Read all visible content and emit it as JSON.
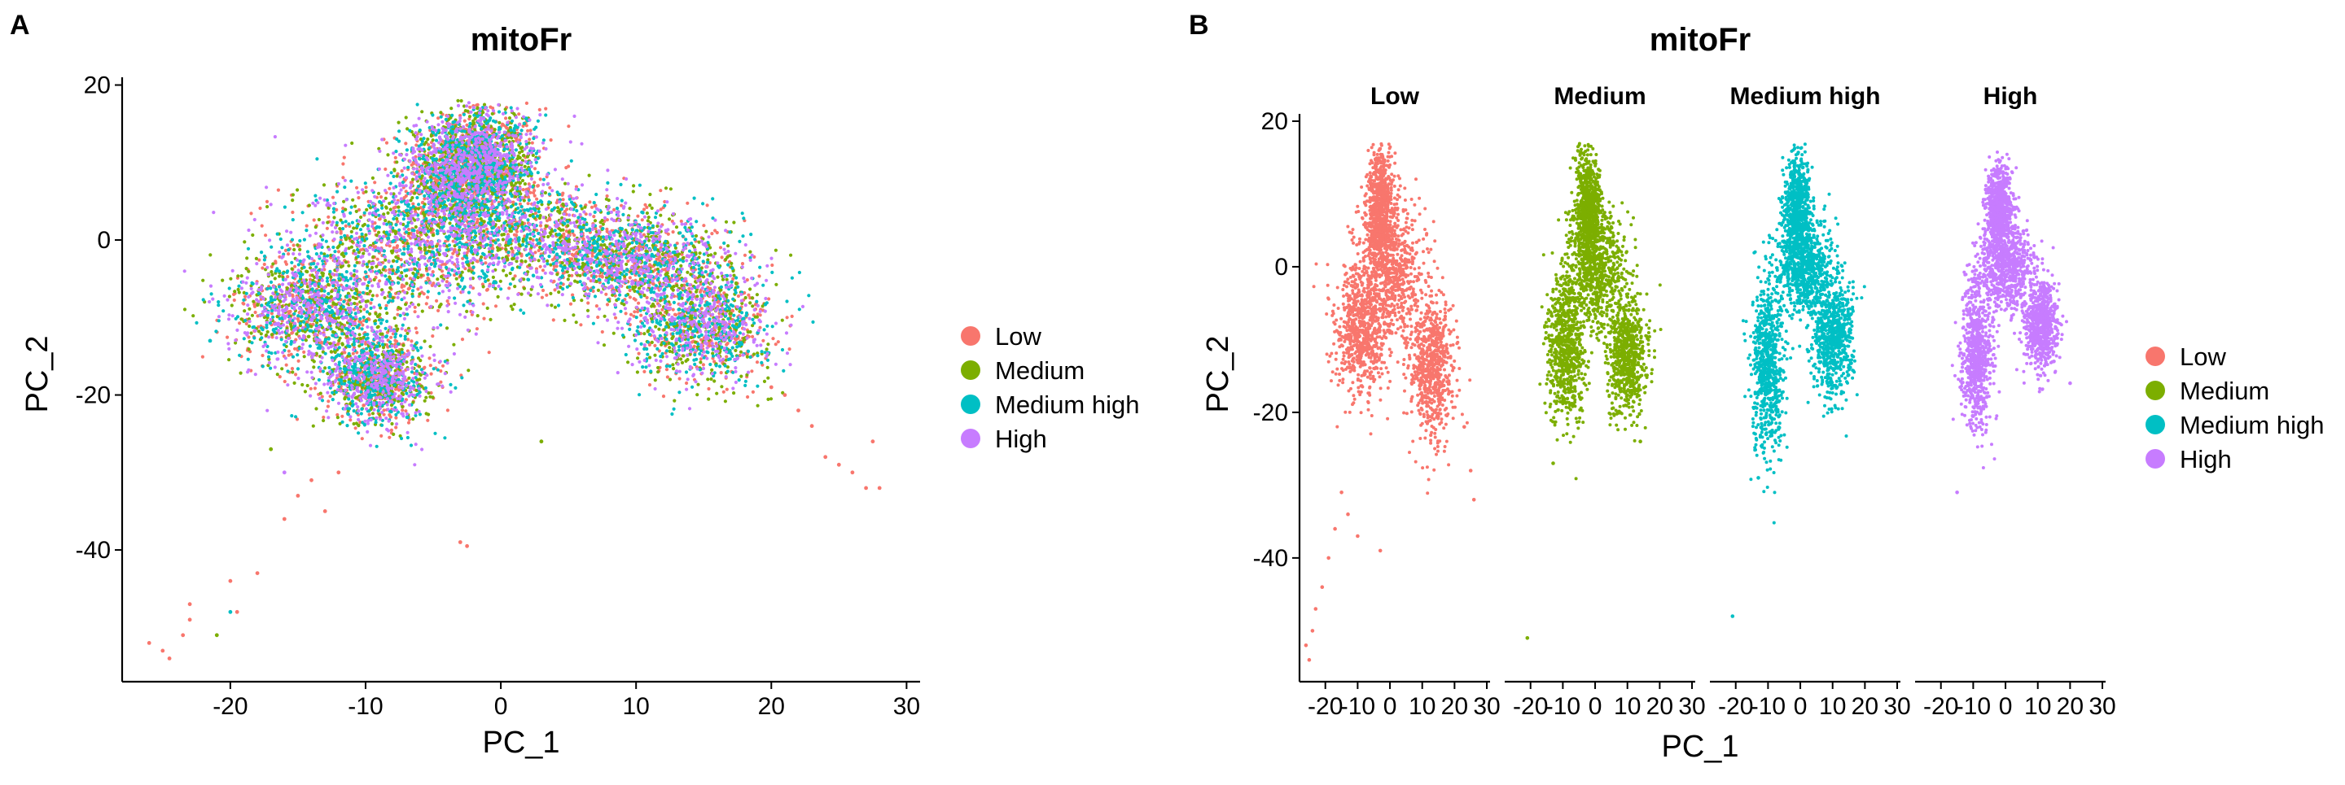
{
  "panels": {
    "a_label": "A",
    "b_label": "B"
  },
  "colors": {
    "Low": "#F8766D",
    "Medium": "#7CAE00",
    "Medium high": "#00BFC4",
    "High": "#C77CFF"
  },
  "chart_data": [
    {
      "type": "scatter",
      "title": "mitoFr",
      "xlabel": "PC_1",
      "ylabel": "PC_2",
      "xlim": [
        -28,
        31
      ],
      "ylim": [
        -57,
        21
      ],
      "xticks": [
        -20,
        -10,
        0,
        10,
        20,
        30
      ],
      "yticks": [
        20,
        0,
        -20,
        -40
      ],
      "grid": false,
      "legend": {
        "position": "right",
        "entries": [
          "Low",
          "Medium",
          "Medium high",
          "High"
        ]
      },
      "series": [
        {
          "name": "Low",
          "color": "#F8766D"
        },
        {
          "name": "Medium",
          "color": "#7CAE00"
        },
        {
          "name": "Medium high",
          "color": "#00BFC4"
        },
        {
          "name": "High",
          "color": "#C77CFF"
        }
      ],
      "clusters": [
        {
          "cx": -3.5,
          "cy": 9,
          "sx": 2,
          "sy": 3.5
        },
        {
          "cx": -1,
          "cy": 10,
          "sx": 2,
          "sy": 3.5
        },
        {
          "cx": -7,
          "cy": -1,
          "sx": 4.5,
          "sy": 4.5
        },
        {
          "cx": 2,
          "cy": 1,
          "sx": 5,
          "sy": 3.5
        },
        {
          "cx": 10,
          "cy": -3,
          "sx": 3.5,
          "sy": 3
        },
        {
          "cx": 15,
          "cy": -11,
          "sx": 2.5,
          "sy": 3.5
        },
        {
          "cx": -14,
          "cy": -9,
          "sx": 3,
          "sy": 3.5
        },
        {
          "cx": -9,
          "cy": -18,
          "sx": 2,
          "sy": 3
        }
      ],
      "outliers": [
        {
          "name": "Low",
          "x": -26,
          "y": -52
        },
        {
          "name": "Low",
          "x": -25,
          "y": -53
        },
        {
          "name": "Low",
          "x": -24.5,
          "y": -54
        },
        {
          "name": "Low",
          "x": -23.5,
          "y": -51
        },
        {
          "name": "Low",
          "x": -23,
          "y": -49
        },
        {
          "name": "Low",
          "x": -23,
          "y": -47
        },
        {
          "name": "Low",
          "x": -20,
          "y": -44
        },
        {
          "name": "Low",
          "x": -19.5,
          "y": -48
        },
        {
          "name": "Low",
          "x": -18,
          "y": -43
        },
        {
          "name": "Low",
          "x": -16,
          "y": -36
        },
        {
          "name": "Low",
          "x": -15,
          "y": -33
        },
        {
          "name": "Low",
          "x": -14,
          "y": -31
        },
        {
          "name": "Low",
          "x": -13,
          "y": -35
        },
        {
          "name": "Low",
          "x": -12,
          "y": -30
        },
        {
          "name": "Low",
          "x": -3,
          "y": -39
        },
        {
          "name": "Low",
          "x": -2.5,
          "y": -39.5
        },
        {
          "name": "Low",
          "x": 22,
          "y": -22
        },
        {
          "name": "Low",
          "x": 23,
          "y": -24
        },
        {
          "name": "Low",
          "x": 24,
          "y": -28
        },
        {
          "name": "Low",
          "x": 25,
          "y": -29
        },
        {
          "name": "Low",
          "x": 26,
          "y": -30
        },
        {
          "name": "Low",
          "x": 27,
          "y": -32
        },
        {
          "name": "Low",
          "x": 28,
          "y": -32
        },
        {
          "name": "Low",
          "x": 27.5,
          "y": -26
        },
        {
          "name": "Low",
          "x": 21,
          "y": -20
        },
        {
          "name": "Low",
          "x": 20,
          "y": -19
        },
        {
          "name": "Medium",
          "x": -21,
          "y": -51
        },
        {
          "name": "Medium high",
          "x": -20,
          "y": -48
        },
        {
          "name": "Medium high",
          "x": -21.5,
          "y": -13
        },
        {
          "name": "Medium",
          "x": -17,
          "y": -27
        },
        {
          "name": "High",
          "x": -16,
          "y": -30
        },
        {
          "name": "Medium",
          "x": 3,
          "y": -26
        }
      ]
    },
    {
      "type": "scatter",
      "title": "mitoFr",
      "xlabel": "PC_1",
      "ylabel": "PC_2",
      "xlim": [
        -28,
        31
      ],
      "ylim": [
        -57,
        21
      ],
      "xticks": [
        -20,
        -10,
        0,
        10,
        20,
        30
      ],
      "yticks": [
        20,
        0,
        -20,
        -40
      ],
      "grid": false,
      "legend": {
        "position": "right",
        "entries": [
          "Low",
          "Medium",
          "Medium high",
          "High"
        ]
      },
      "facets": [
        {
          "label": "Low",
          "color": "#F8766D",
          "clusters": [
            {
              "cx": -3,
              "cy": 8,
              "sx": 2,
              "sy": 4
            },
            {
              "cx": 0,
              "cy": 0,
              "sx": 5,
              "sy": 4.5
            },
            {
              "cx": -9,
              "cy": -9,
              "sx": 4,
              "sy": 4.5
            },
            {
              "cx": 13,
              "cy": -14,
              "sx": 3.5,
              "sy": 5
            }
          ],
          "outliers": [
            {
              "x": -26,
              "y": -52
            },
            {
              "x": -25,
              "y": -54
            },
            {
              "x": -24,
              "y": -50
            },
            {
              "x": -23,
              "y": -47
            },
            {
              "x": -21,
              "y": -44
            },
            {
              "x": -19,
              "y": -40
            },
            {
              "x": -17,
              "y": -36
            },
            {
              "x": -15,
              "y": -31
            },
            {
              "x": -13,
              "y": -34
            },
            {
              "x": -10,
              "y": -37
            },
            {
              "x": -3,
              "y": -39
            },
            {
              "x": 26,
              "y": -32
            },
            {
              "x": 25,
              "y": -28
            },
            {
              "x": 23,
              "y": -22
            }
          ]
        },
        {
          "label": "Medium",
          "color": "#7CAE00",
          "clusters": [
            {
              "cx": -2,
              "cy": 8,
              "sx": 2,
              "sy": 4
            },
            {
              "cx": 0,
              "cy": 0,
              "sx": 4.5,
              "sy": 4
            },
            {
              "cx": -9,
              "cy": -11,
              "sx": 3,
              "sy": 5
            },
            {
              "cx": 10,
              "cy": -12,
              "sx": 3,
              "sy": 4
            }
          ],
          "outliers": [
            {
              "x": -21,
              "y": -51
            },
            {
              "x": -13,
              "y": -27
            },
            {
              "x": 14,
              "y": -24
            }
          ]
        },
        {
          "label": "Medium high",
          "color": "#00BFC4",
          "clusters": [
            {
              "cx": -1,
              "cy": 8,
              "sx": 2,
              "sy": 4
            },
            {
              "cx": 1,
              "cy": 0,
              "sx": 4.5,
              "sy": 3.5
            },
            {
              "cx": -10,
              "cy": -14,
              "sx": 2.5,
              "sy": 6
            },
            {
              "cx": 10,
              "cy": -10,
              "sx": 3,
              "sy": 4
            }
          ],
          "outliers": [
            {
              "x": -21,
              "y": -48
            },
            {
              "x": -13,
              "y": -29
            }
          ]
        },
        {
          "label": "High",
          "color": "#C77CFF",
          "clusters": [
            {
              "cx": -2,
              "cy": 8,
              "sx": 2,
              "sy": 3
            },
            {
              "cx": 0,
              "cy": 0,
              "sx": 4,
              "sy": 3
            },
            {
              "cx": -9,
              "cy": -12,
              "sx": 2.5,
              "sy": 5
            },
            {
              "cx": 11,
              "cy": -8,
              "sx": 2.5,
              "sy": 3
            }
          ],
          "outliers": [
            {
              "x": -15,
              "y": -31
            },
            {
              "x": 20,
              "y": -16
            },
            {
              "x": 15,
              "y": -13
            }
          ]
        }
      ]
    }
  ]
}
